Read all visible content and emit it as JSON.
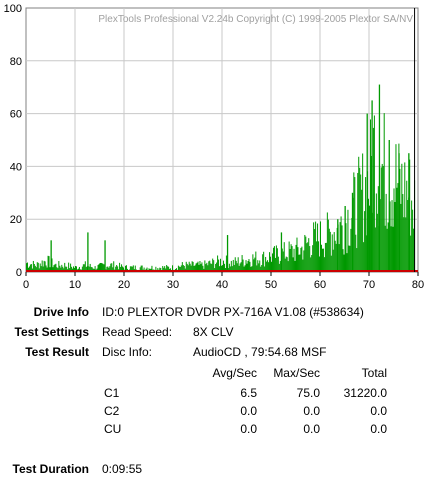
{
  "chart_data": {
    "type": "bar",
    "title": "PlexTools Professional V2.24b Copyright (C) 1999-2005 Plextor SA/NV",
    "xlim": [
      0,
      80
    ],
    "ylim": [
      0,
      100
    ],
    "x_ticks": [
      0,
      10,
      20,
      30,
      40,
      50,
      60,
      70,
      80
    ],
    "y_ticks": [
      0,
      20,
      40,
      60,
      80,
      100
    ],
    "grid": true,
    "series": [
      {
        "name": "C1",
        "color": "#009900",
        "x": [
          0,
          2,
          4,
          6,
          8,
          10,
          12,
          14,
          16,
          18,
          20,
          22,
          24,
          26,
          28,
          30,
          32,
          34,
          36,
          38,
          40,
          42,
          44,
          46,
          48,
          50,
          52,
          54,
          56,
          58,
          60,
          62,
          64,
          66,
          68,
          70,
          71,
          72,
          73,
          74,
          75,
          76,
          77,
          78,
          79
        ],
        "values": [
          4,
          3,
          5,
          3,
          3,
          2,
          3,
          2,
          3,
          3,
          2,
          2,
          2,
          2,
          2,
          2,
          3,
          3,
          3,
          4,
          5,
          4,
          5,
          6,
          6,
          7,
          8,
          9,
          10,
          14,
          15,
          17,
          20,
          25,
          32,
          40,
          55,
          48,
          45,
          40,
          42,
          38,
          36,
          35,
          30
        ]
      },
      {
        "name": "C1 peaks",
        "color": "#009900",
        "x": [
          5,
          12.5,
          16,
          41,
          52,
          63.5,
          65,
          66.5,
          69.5,
          70.5,
          72,
          74,
          76,
          78
        ],
        "values": [
          12,
          15,
          12,
          14,
          15,
          20,
          25,
          30,
          60,
          65,
          71,
          50,
          45,
          45
        ]
      },
      {
        "name": "C2",
        "color": "#cc0000",
        "x": [
          0,
          80
        ],
        "values": [
          0,
          0
        ]
      },
      {
        "name": "Position",
        "color": "#000000",
        "x": [
          79.3
        ],
        "values": [
          100
        ]
      }
    ]
  },
  "info": {
    "drive_info_label": "Drive Info",
    "drive_info_value": "ID:0 PLEXTOR DVDR PX-716A V1.08 (#538634)",
    "test_settings_label": "Test Settings",
    "read_speed_label": "Read Speed:",
    "read_speed_value": "8X CLV",
    "test_result_label": "Test Result",
    "disc_info_label": "Disc Info:",
    "disc_info_value": "AudioCD , 79:54.68 MSF",
    "stats_headers": [
      "Avg/Sec",
      "Max/Sec",
      "Total"
    ],
    "stats_rows": [
      {
        "name": "C1",
        "avg": "6.5",
        "max": "75.0",
        "total": "31220.0"
      },
      {
        "name": "C2",
        "avg": "0.0",
        "max": "0.0",
        "total": "0.0"
      },
      {
        "name": "CU",
        "avg": "0.0",
        "max": "0.0",
        "total": "0.0"
      }
    ],
    "test_duration_label": "Test Duration",
    "test_duration_value": "0:09:55"
  }
}
